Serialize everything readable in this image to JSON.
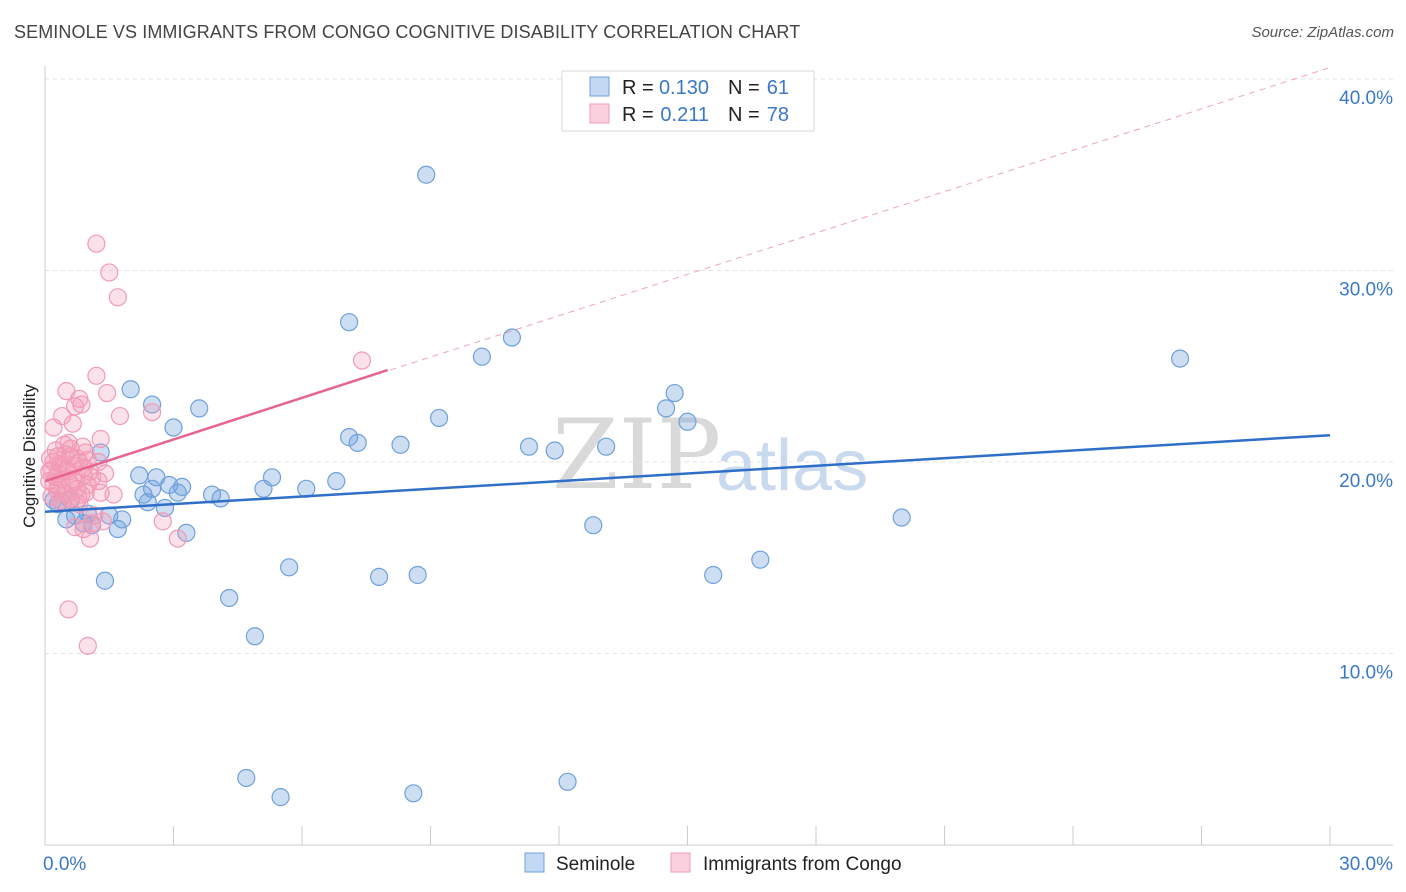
{
  "title": "SEMINOLE VS IMMIGRANTS FROM CONGO COGNITIVE DISABILITY CORRELATION CHART",
  "source": "Source: ZipAtlas.com",
  "watermark": {
    "zip": "ZIP",
    "atlas": "atlas"
  },
  "legend_top": {
    "rows": [
      {
        "r_label": "R =",
        "r_value": "0.130",
        "n_label": "N =",
        "n_value": "61"
      },
      {
        "r_label": "R =",
        "r_value": "0.211",
        "n_label": "N =",
        "n_value": "78"
      }
    ]
  },
  "legend_bottom": {
    "items": [
      "Seminole",
      "Immigrants from Congo"
    ]
  },
  "chart_data": {
    "type": "scatter",
    "title": "SEMINOLE VS IMMIGRANTS FROM CONGO COGNITIVE DISABILITY CORRELATION CHART",
    "xlabel": "",
    "ylabel": "Cognitive Disability",
    "xlim": [
      0,
      30
    ],
    "ylim": [
      0,
      40
    ],
    "x_tick_labels": [
      "0.0%",
      "30.0%"
    ],
    "y_tick_labels": [
      "10.0%",
      "20.0%",
      "30.0%",
      "40.0%"
    ],
    "y_ticks": [
      10,
      20,
      30,
      40
    ],
    "colors": {
      "seminole": "#6fa0dc",
      "congo": "#f29ab6",
      "seminole_line": "#2f6fc8",
      "congo_line": "#e8648f"
    },
    "series": [
      {
        "name": "Seminole",
        "R": 0.13,
        "N": 61,
        "trend": {
          "x": [
            0,
            30
          ],
          "y": [
            17.4,
            21.4
          ]
        },
        "points": [
          [
            0.2,
            18.0
          ],
          [
            0.5,
            17.0
          ],
          [
            0.6,
            18.0
          ],
          [
            0.7,
            17.2
          ],
          [
            0.9,
            16.8
          ],
          [
            1.1,
            16.7
          ],
          [
            1.0,
            17.3
          ],
          [
            1.5,
            17.2
          ],
          [
            1.3,
            20.5
          ],
          [
            1.7,
            16.5
          ],
          [
            1.4,
            13.8
          ],
          [
            2.0,
            23.8
          ],
          [
            2.2,
            19.3
          ],
          [
            2.4,
            17.9
          ],
          [
            2.5,
            18.6
          ],
          [
            2.5,
            23.0
          ],
          [
            2.6,
            19.2
          ],
          [
            2.8,
            17.6
          ],
          [
            2.9,
            18.8
          ],
          [
            3.0,
            21.8
          ],
          [
            3.1,
            18.4
          ],
          [
            3.2,
            18.7
          ],
          [
            3.3,
            16.3
          ],
          [
            3.6,
            22.8
          ],
          [
            3.9,
            18.3
          ],
          [
            4.1,
            18.1
          ],
          [
            4.3,
            12.9
          ],
          [
            4.7,
            3.5
          ],
          [
            4.9,
            10.9
          ],
          [
            5.1,
            18.6
          ],
          [
            5.3,
            19.2
          ],
          [
            5.5,
            2.5
          ],
          [
            5.7,
            14.5
          ],
          [
            6.1,
            18.6
          ],
          [
            6.8,
            19.0
          ],
          [
            7.1,
            21.3
          ],
          [
            7.1,
            27.3
          ],
          [
            7.3,
            21.0
          ],
          [
            7.8,
            14.0
          ],
          [
            8.3,
            20.9
          ],
          [
            8.6,
            2.7
          ],
          [
            8.7,
            14.1
          ],
          [
            8.9,
            35.0
          ],
          [
            9.2,
            22.3
          ],
          [
            10.2,
            25.5
          ],
          [
            10.9,
            26.5
          ],
          [
            11.3,
            20.8
          ],
          [
            11.9,
            20.6
          ],
          [
            12.2,
            3.3
          ],
          [
            12.8,
            16.7
          ],
          [
            13.1,
            20.8
          ],
          [
            14.5,
            22.8
          ],
          [
            14.7,
            23.6
          ],
          [
            15.0,
            22.1
          ],
          [
            15.6,
            14.1
          ],
          [
            16.7,
            14.9
          ],
          [
            20.0,
            17.1
          ],
          [
            26.5,
            25.4
          ],
          [
            0.3,
            17.8
          ],
          [
            1.8,
            17.0
          ],
          [
            2.3,
            18.3
          ]
        ]
      },
      {
        "name": "Immigrants from Congo",
        "R": 0.211,
        "N": 78,
        "trend": {
          "x": [
            0,
            8
          ],
          "y": [
            19.0,
            24.8
          ]
        },
        "trend_extended": {
          "x": [
            0,
            30
          ],
          "y": [
            19.0,
            40.6
          ]
        },
        "points": [
          [
            0.1,
            19.0
          ],
          [
            0.1,
            19.5
          ],
          [
            0.15,
            18.2
          ],
          [
            0.2,
            20.0
          ],
          [
            0.2,
            21.8
          ],
          [
            0.25,
            19.2
          ],
          [
            0.3,
            18.7
          ],
          [
            0.3,
            20.3
          ],
          [
            0.35,
            19.9
          ],
          [
            0.4,
            22.4
          ],
          [
            0.4,
            17.9
          ],
          [
            0.45,
            18.4
          ],
          [
            0.5,
            19.6
          ],
          [
            0.5,
            23.7
          ],
          [
            0.55,
            21.0
          ],
          [
            0.55,
            12.3
          ],
          [
            0.6,
            20.3
          ],
          [
            0.6,
            18.1
          ],
          [
            0.65,
            19.1
          ],
          [
            0.7,
            22.9
          ],
          [
            0.7,
            16.6
          ],
          [
            0.75,
            18.6
          ],
          [
            0.8,
            23.3
          ],
          [
            0.8,
            20.0
          ],
          [
            0.85,
            18.3
          ],
          [
            0.9,
            19.3
          ],
          [
            0.9,
            16.5
          ],
          [
            0.95,
            20.5
          ],
          [
            1.0,
            10.4
          ],
          [
            1.0,
            18.8
          ],
          [
            1.05,
            16.0
          ],
          [
            1.1,
            19.2
          ],
          [
            1.1,
            16.8
          ],
          [
            1.2,
            24.5
          ],
          [
            1.2,
            31.4
          ],
          [
            1.25,
            20.0
          ],
          [
            1.3,
            21.2
          ],
          [
            1.3,
            18.4
          ],
          [
            1.35,
            16.9
          ],
          [
            1.4,
            19.4
          ],
          [
            1.45,
            23.6
          ],
          [
            1.5,
            29.9
          ],
          [
            1.6,
            18.3
          ],
          [
            1.7,
            28.6
          ],
          [
            1.75,
            22.4
          ],
          [
            2.5,
            22.6
          ],
          [
            2.75,
            16.9
          ],
          [
            3.1,
            16.0
          ],
          [
            7.4,
            25.3
          ],
          [
            0.15,
            19.6
          ],
          [
            0.2,
            18.9
          ],
          [
            0.25,
            20.6
          ],
          [
            0.3,
            19.4
          ],
          [
            0.35,
            18.0
          ],
          [
            0.4,
            19.8
          ],
          [
            0.45,
            20.9
          ],
          [
            0.5,
            18.3
          ],
          [
            0.55,
            19.5
          ],
          [
            0.6,
            20.7
          ],
          [
            0.65,
            22.0
          ],
          [
            0.7,
            19.0
          ],
          [
            0.75,
            20.2
          ],
          [
            0.8,
            17.8
          ],
          [
            0.85,
            23.0
          ],
          [
            0.9,
            19.7
          ],
          [
            0.95,
            18.4
          ],
          [
            1.0,
            20.1
          ],
          [
            1.05,
            19.5
          ],
          [
            1.15,
            17.2
          ],
          [
            1.25,
            19.0
          ],
          [
            0.12,
            20.2
          ],
          [
            0.28,
            18.5
          ],
          [
            0.38,
            19.1
          ],
          [
            0.48,
            20.4
          ],
          [
            0.58,
            18.9
          ],
          [
            0.68,
            19.8
          ],
          [
            0.78,
            18.1
          ],
          [
            0.88,
            20.8
          ]
        ]
      }
    ]
  }
}
